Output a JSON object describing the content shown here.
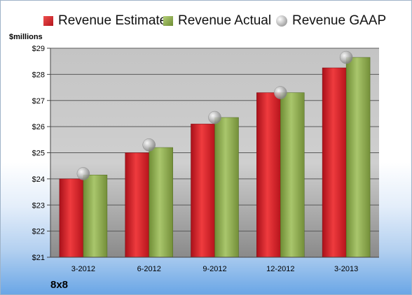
{
  "company": "8x8",
  "units_label": "$millions",
  "legend": {
    "estimate": "Revenue Estimate",
    "actual": "Revenue Actual",
    "gaap": "Revenue GAAP"
  },
  "colors": {
    "estimate": "#d0202a",
    "actual": "#8fad4f",
    "gaap": "#b0b0b0"
  },
  "chart_data": {
    "type": "bar",
    "categories": [
      "3-2012",
      "6-2012",
      "9-2012",
      "12-2012",
      "3-2013"
    ],
    "series": [
      {
        "name": "Revenue Estimate",
        "values": [
          24.0,
          25.0,
          26.1,
          27.3,
          28.25
        ]
      },
      {
        "name": "Revenue Actual",
        "values": [
          24.15,
          25.2,
          26.35,
          27.3,
          28.65
        ]
      },
      {
        "name": "Revenue GAAP",
        "values": [
          24.2,
          25.3,
          26.35,
          27.3,
          28.65
        ]
      }
    ],
    "ylabel": "$millions",
    "ylim": [
      21,
      29
    ],
    "yticks": [
      "$21",
      "$22",
      "$23",
      "$24",
      "$25",
      "$26",
      "$27",
      "$28",
      "$29"
    ],
    "grid": true,
    "legend_position": "top"
  }
}
